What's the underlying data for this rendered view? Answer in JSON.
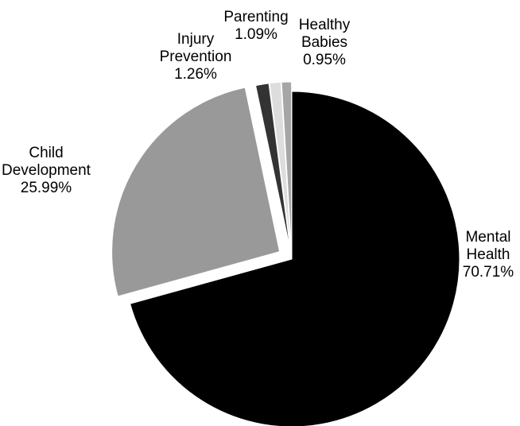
{
  "chart_data": {
    "type": "pie",
    "title": "",
    "slices": [
      {
        "label_lines": [
          "Mental",
          "Health"
        ],
        "value": 70.71,
        "value_text": "70.71%",
        "color": "#000000"
      },
      {
        "label_lines": [
          "Child",
          "Development"
        ],
        "value": 25.99,
        "value_text": "25.99%",
        "color": "#999999"
      },
      {
        "label_lines": [
          "Injury",
          "Prevention"
        ],
        "value": 1.26,
        "value_text": "1.26%",
        "color": "#333333"
      },
      {
        "label_lines": [
          "Parenting"
        ],
        "value": 1.09,
        "value_text": "1.09%",
        "color": "#dddddd"
      },
      {
        "label_lines": [
          "Healthy",
          "Babies"
        ],
        "value": 0.95,
        "value_text": "0.95%",
        "color": "#a6a6a6"
      }
    ],
    "exploded": true,
    "start": "top, clockwise",
    "legend": "none"
  }
}
